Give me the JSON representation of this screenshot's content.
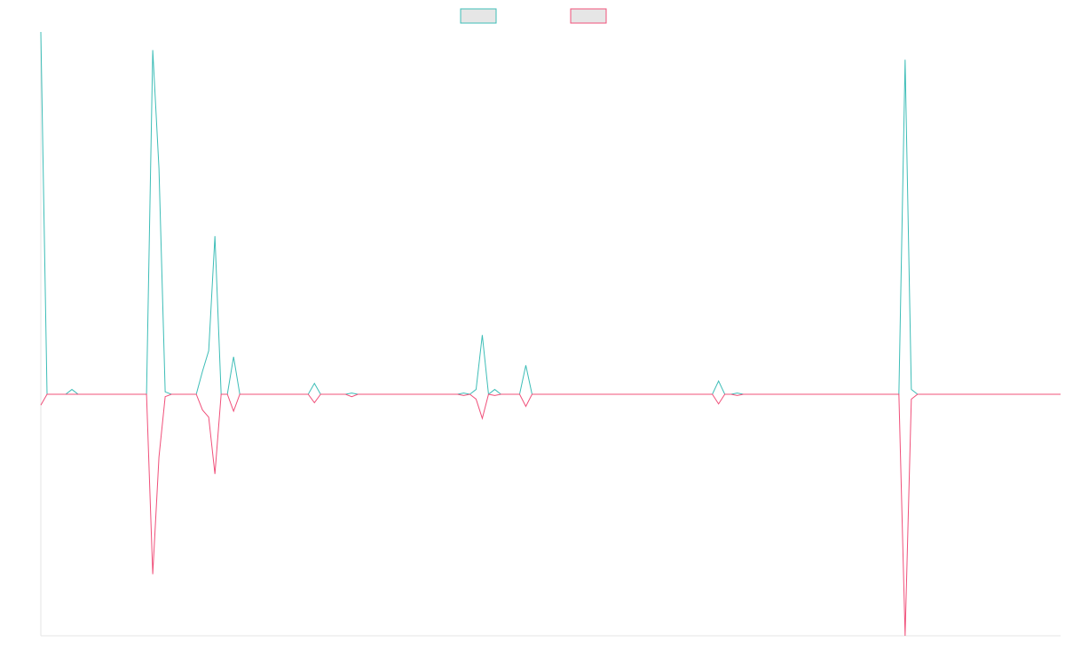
{
  "chart_data": {
    "type": "line",
    "categories": [
      null,
      null,
      null,
      null,
      null,
      null,
      null,
      null,
      null,
      null,
      null,
      null,
      null,
      null,
      null,
      null,
      null,
      null,
      null,
      null,
      null,
      null,
      null,
      null,
      null,
      null,
      null,
      null,
      null,
      null,
      null,
      null,
      null,
      null,
      null,
      null,
      null,
      null,
      null,
      null,
      null,
      null,
      null,
      null,
      null,
      null,
      null,
      null,
      null,
      null,
      null,
      null,
      null,
      null,
      null,
      null,
      null,
      null,
      null,
      null,
      null,
      null,
      null,
      null,
      null,
      null,
      null,
      null,
      null,
      null,
      null,
      null,
      null,
      null,
      null,
      null,
      null,
      null,
      null,
      null,
      null,
      null,
      null,
      null,
      null,
      null,
      null,
      null,
      null,
      null,
      null,
      null,
      null,
      null,
      null,
      null,
      null,
      null,
      null,
      null,
      null,
      null,
      null,
      null,
      null,
      null,
      null,
      null,
      null,
      null,
      null,
      null,
      null,
      null,
      null,
      null,
      null,
      null,
      null,
      null,
      null,
      null,
      null,
      null,
      null,
      null,
      null,
      null,
      null,
      null,
      null,
      null,
      null,
      null,
      null,
      null,
      null,
      null,
      null,
      null,
      null,
      null,
      null,
      null,
      null,
      null,
      null,
      null,
      null,
      null,
      null,
      null,
      null,
      null,
      null,
      null,
      null,
      null,
      null,
      null,
      null,
      null,
      null,
      null,
      null
    ],
    "series": [
      {
        "color": "#3dbdb7",
        "values": [
          3.0,
          0,
          0,
          0,
          0,
          0.04,
          0,
          0,
          0,
          0,
          0,
          0,
          0,
          0,
          0,
          0,
          0,
          0,
          2.85,
          1.87,
          0.02,
          0,
          0,
          0,
          0,
          0,
          0.19,
          0.36,
          1.31,
          0,
          0,
          0.31,
          0,
          0,
          0,
          0,
          0,
          0,
          0,
          0,
          0,
          0,
          0,
          0,
          0.09,
          0,
          0,
          0,
          0,
          0,
          0.01,
          0,
          0,
          0,
          0,
          0,
          0,
          0,
          0,
          0,
          0,
          0,
          0,
          0,
          0,
          0,
          0,
          0,
          0.01,
          0,
          0.04,
          0.49,
          0,
          0.04,
          0,
          0,
          0,
          0,
          0.24,
          0,
          0,
          0,
          0,
          0,
          0,
          0,
          0,
          0,
          0,
          0,
          0,
          0,
          0,
          0,
          0,
          0,
          0,
          0,
          0,
          0,
          0,
          0,
          0,
          0,
          0,
          0,
          0,
          0,
          0,
          0.11,
          0,
          0,
          0.01,
          0,
          0,
          0,
          0,
          0,
          0,
          0,
          0,
          0,
          0,
          0,
          0,
          0,
          0,
          0,
          0,
          0,
          0,
          0,
          0,
          0,
          0,
          0,
          0,
          0,
          0,
          2.77,
          0.04,
          0,
          0,
          0,
          0,
          0,
          0,
          0,
          0,
          0,
          0,
          0,
          0,
          0,
          0,
          0,
          0,
          0,
          0,
          0,
          0,
          0,
          0,
          0,
          0
        ]
      },
      {
        "color": "#f0507a",
        "values": [
          -0.09,
          0,
          0,
          0,
          0,
          0,
          0,
          0,
          0,
          0,
          0,
          0,
          0,
          0,
          0,
          0,
          0,
          0,
          -1.49,
          -0.52,
          -0.02,
          0,
          0,
          0,
          0,
          0,
          -0.13,
          -0.19,
          -0.66,
          0,
          0,
          -0.14,
          0,
          0,
          0,
          0,
          0,
          0,
          0,
          0,
          0,
          0,
          0,
          0,
          -0.07,
          0,
          0,
          0,
          0,
          0,
          -0.02,
          0,
          0,
          0,
          0,
          0,
          0,
          0,
          0,
          0,
          0,
          0,
          0,
          0,
          0,
          0,
          0,
          0,
          -0.01,
          0,
          -0.04,
          -0.2,
          0,
          -0.01,
          0,
          0,
          0,
          0,
          -0.1,
          0,
          0,
          0,
          0,
          0,
          0,
          0,
          0,
          0,
          0,
          0,
          0,
          0,
          0,
          0,
          0,
          0,
          0,
          0,
          0,
          0,
          0,
          0,
          0,
          0,
          0,
          0,
          0,
          0,
          0,
          -0.08,
          0,
          0,
          -0.01,
          0,
          0,
          0,
          0,
          0,
          0,
          0,
          0,
          0,
          0,
          0,
          0,
          0,
          0,
          0,
          0,
          0,
          0,
          0,
          0,
          0,
          0,
          0,
          0,
          0,
          0,
          -2.0,
          -0.04,
          0,
          0,
          0,
          0,
          0,
          0,
          0,
          0,
          0,
          0,
          0,
          0,
          0,
          0,
          0,
          0,
          0,
          0,
          0,
          0,
          0,
          0,
          0,
          0
        ]
      }
    ],
    "ylim": [
      -2,
      3
    ],
    "legend": "top"
  }
}
